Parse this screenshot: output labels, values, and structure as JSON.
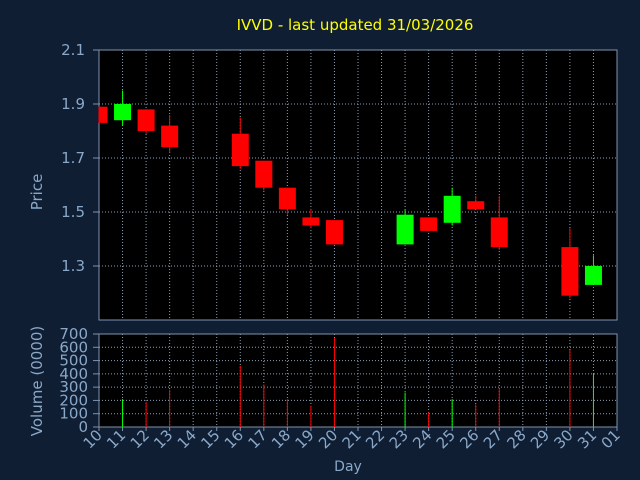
{
  "title": "IVVD - last updated 31/03/2026",
  "colors": {
    "background": "#0f1e33",
    "title": "#ffff00",
    "axis_text": "#8aa8c8",
    "axis_line": "#7f93ad",
    "grid": "#8aa0b8",
    "up": "#00ff00",
    "down": "#ff0000",
    "wick": "#ff4444",
    "plot_bg": "#000000"
  },
  "chart_data": [
    {
      "type": "candlestick",
      "title": "IVVD - last updated 31/03/2026",
      "xlabel": "",
      "ylabel": "Price",
      "ylim": [
        1.1,
        2.1
      ],
      "yticks": [
        1.3,
        1.5,
        1.7,
        1.9,
        2.1
      ],
      "grid": true,
      "categories": [
        "10",
        "11",
        "12",
        "13",
        "14",
        "16",
        "17",
        "18",
        "19",
        "20",
        "23",
        "24",
        "25",
        "26",
        "27",
        "30",
        "31"
      ],
      "candles": [
        {
          "day": "10",
          "open": 1.89,
          "high": 1.89,
          "low": 1.83,
          "close": 1.83
        },
        {
          "day": "11",
          "open": 1.84,
          "high": 1.95,
          "low": 1.82,
          "close": 1.9
        },
        {
          "day": "12",
          "open": 1.88,
          "high": 1.88,
          "low": 1.79,
          "close": 1.8
        },
        {
          "day": "13",
          "open": 1.82,
          "high": 1.86,
          "low": 1.72,
          "close": 1.74
        },
        {
          "day": "16",
          "open": 1.79,
          "high": 1.85,
          "low": 1.66,
          "close": 1.67
        },
        {
          "day": "17",
          "open": 1.69,
          "high": 1.69,
          "low": 1.58,
          "close": 1.59
        },
        {
          "day": "18",
          "open": 1.59,
          "high": 1.59,
          "low": 1.49,
          "close": 1.51
        },
        {
          "day": "19",
          "open": 1.48,
          "high": 1.51,
          "low": 1.44,
          "close": 1.45
        },
        {
          "day": "20",
          "open": 1.47,
          "high": 1.47,
          "low": 1.38,
          "close": 1.38
        },
        {
          "day": "23",
          "open": 1.38,
          "high": 1.51,
          "low": 1.38,
          "close": 1.49
        },
        {
          "day": "24",
          "open": 1.48,
          "high": 1.48,
          "low": 1.43,
          "close": 1.43
        },
        {
          "day": "25",
          "open": 1.46,
          "high": 1.59,
          "low": 1.45,
          "close": 1.56
        },
        {
          "day": "26",
          "open": 1.54,
          "high": 1.56,
          "low": 1.51,
          "close": 1.51
        },
        {
          "day": "27",
          "open": 1.48,
          "high": 1.56,
          "low": 1.36,
          "close": 1.37
        },
        {
          "day": "30",
          "open": 1.37,
          "high": 1.44,
          "low": 1.18,
          "close": 1.19
        },
        {
          "day": "31",
          "open": 1.23,
          "high": 1.34,
          "low": 1.23,
          "close": 1.3
        }
      ]
    },
    {
      "type": "bar",
      "ylabel": "Volume (0000)",
      "xlabel": "Day",
      "ylim": [
        0,
        700
      ],
      "yticks": [
        0,
        100,
        200,
        300,
        400,
        500,
        600,
        700
      ],
      "grid": true,
      "xticks": [
        "10",
        "11",
        "12",
        "13",
        "14",
        "15",
        "16",
        "17",
        "18",
        "19",
        "20",
        "21",
        "22",
        "23",
        "24",
        "25",
        "26",
        "27",
        "28",
        "29",
        "30",
        "31",
        "01"
      ],
      "volumes": [
        {
          "day": "10",
          "value": 0,
          "direction": "down"
        },
        {
          "day": "11",
          "value": 210,
          "direction": "up"
        },
        {
          "day": "12",
          "value": 190,
          "direction": "down"
        },
        {
          "day": "13",
          "value": 280,
          "direction": "down"
        },
        {
          "day": "16",
          "value": 460,
          "direction": "down"
        },
        {
          "day": "17",
          "value": 320,
          "direction": "down"
        },
        {
          "day": "18",
          "value": 210,
          "direction": "down"
        },
        {
          "day": "19",
          "value": 160,
          "direction": "down"
        },
        {
          "day": "20",
          "value": 670,
          "direction": "down"
        },
        {
          "day": "23",
          "value": 260,
          "direction": "up"
        },
        {
          "day": "24",
          "value": 110,
          "direction": "down"
        },
        {
          "day": "25",
          "value": 210,
          "direction": "up"
        },
        {
          "day": "26",
          "value": 170,
          "direction": "down"
        },
        {
          "day": "27",
          "value": 290,
          "direction": "down"
        },
        {
          "day": "30",
          "value": 580,
          "direction": "down"
        },
        {
          "day": "31",
          "value": 400,
          "direction": "up"
        }
      ]
    }
  ]
}
